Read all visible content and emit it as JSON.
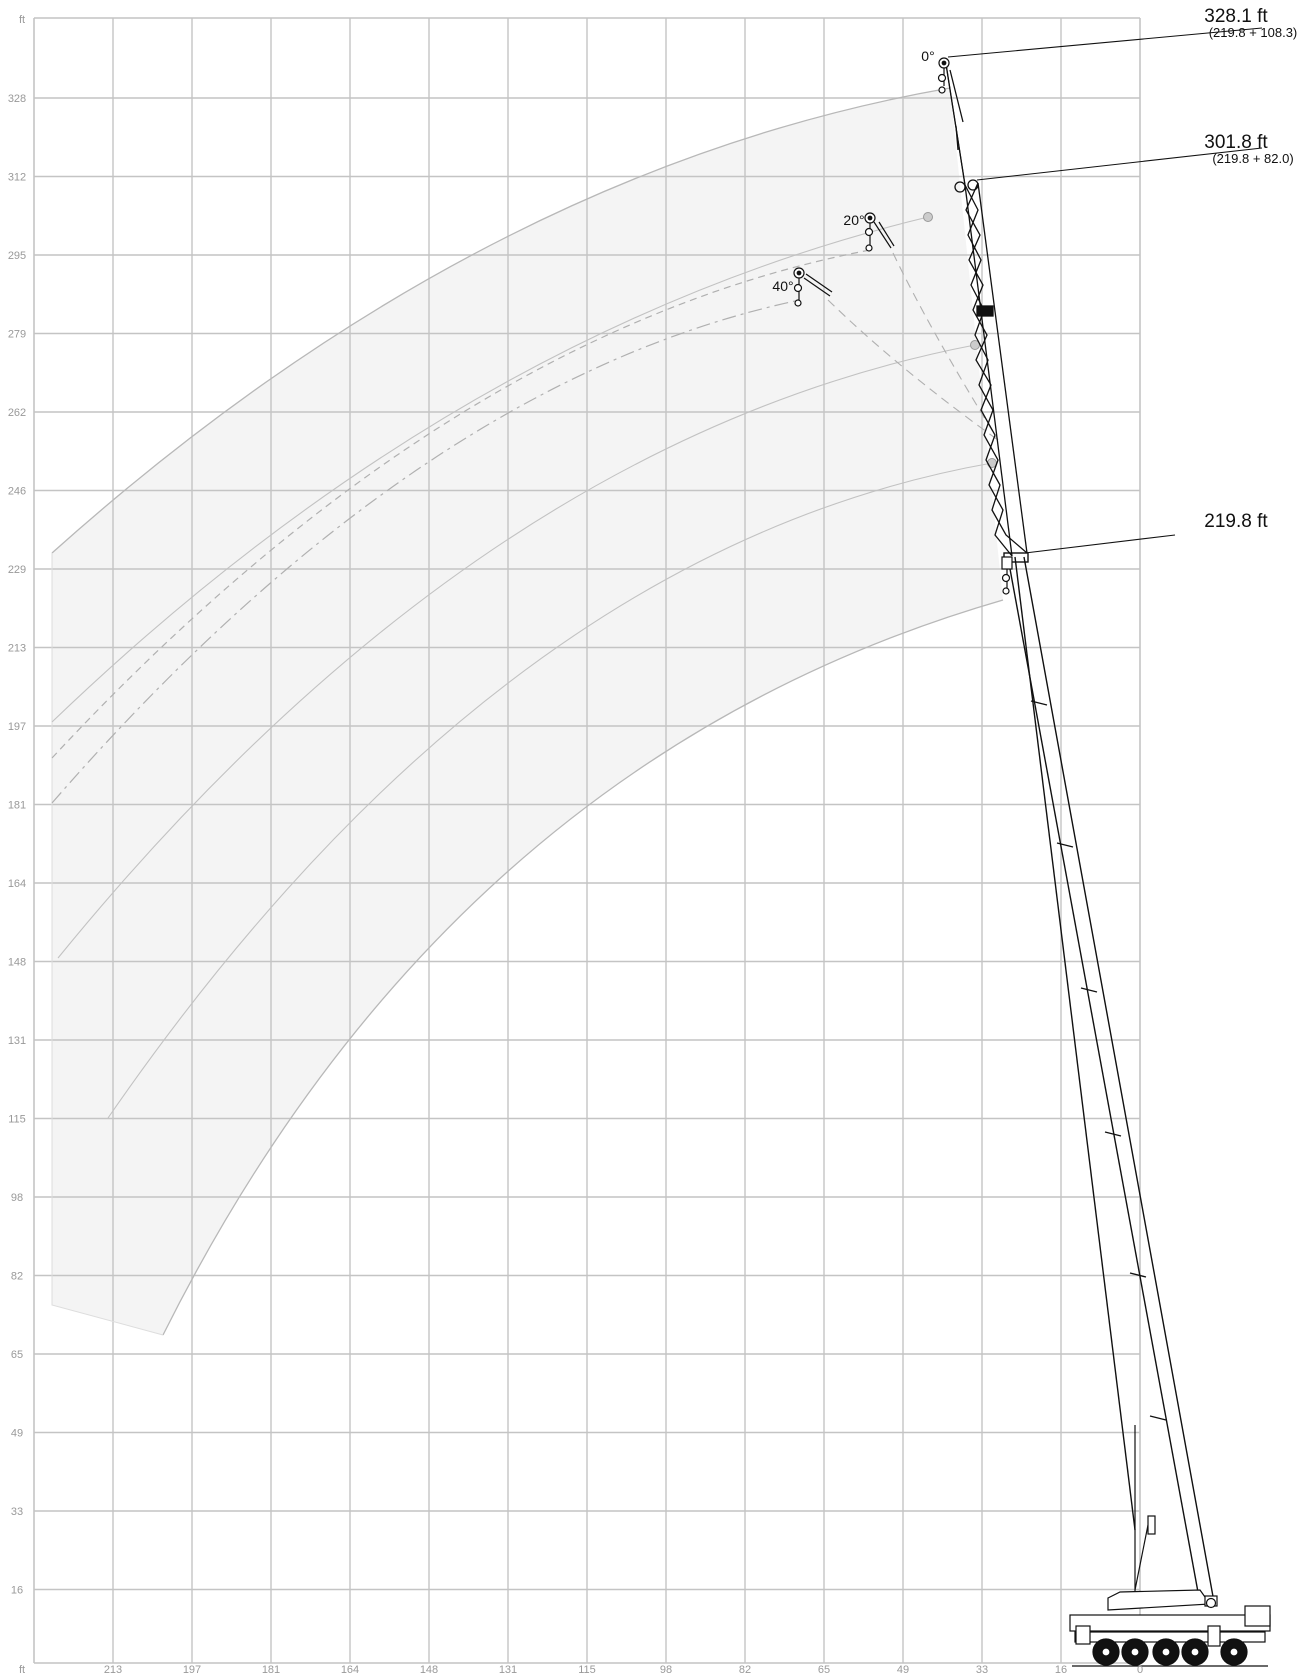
{
  "chart_data": {
    "type": "diagram",
    "axis_unit": "ft",
    "x_ticks": [
      "213",
      "197",
      "181",
      "164",
      "148",
      "131",
      "115",
      "98",
      "82",
      "65",
      "49",
      "33",
      "16",
      "0"
    ],
    "y_ticks": [
      "328",
      "312",
      "295",
      "279",
      "262",
      "246",
      "229",
      "213",
      "197",
      "181",
      "164",
      "148",
      "131",
      "115",
      "98",
      "82",
      "65",
      "49",
      "33",
      "16"
    ],
    "annotations": [
      {
        "label": "328.1 ft",
        "sub": "(219.8 + 108.3)"
      },
      {
        "label": "301.8 ft",
        "sub": "(219.8 + 82.0)"
      },
      {
        "label": "219.8 ft",
        "sub": ""
      }
    ],
    "luffing_angles": [
      "0°",
      "20°",
      "40°"
    ],
    "colors": {
      "grid": "#c4c4c4",
      "envelope_fill": "#f4f4f4",
      "arc": "#b8b8b8",
      "boom": "#111111",
      "tick_text": "#999999"
    }
  }
}
